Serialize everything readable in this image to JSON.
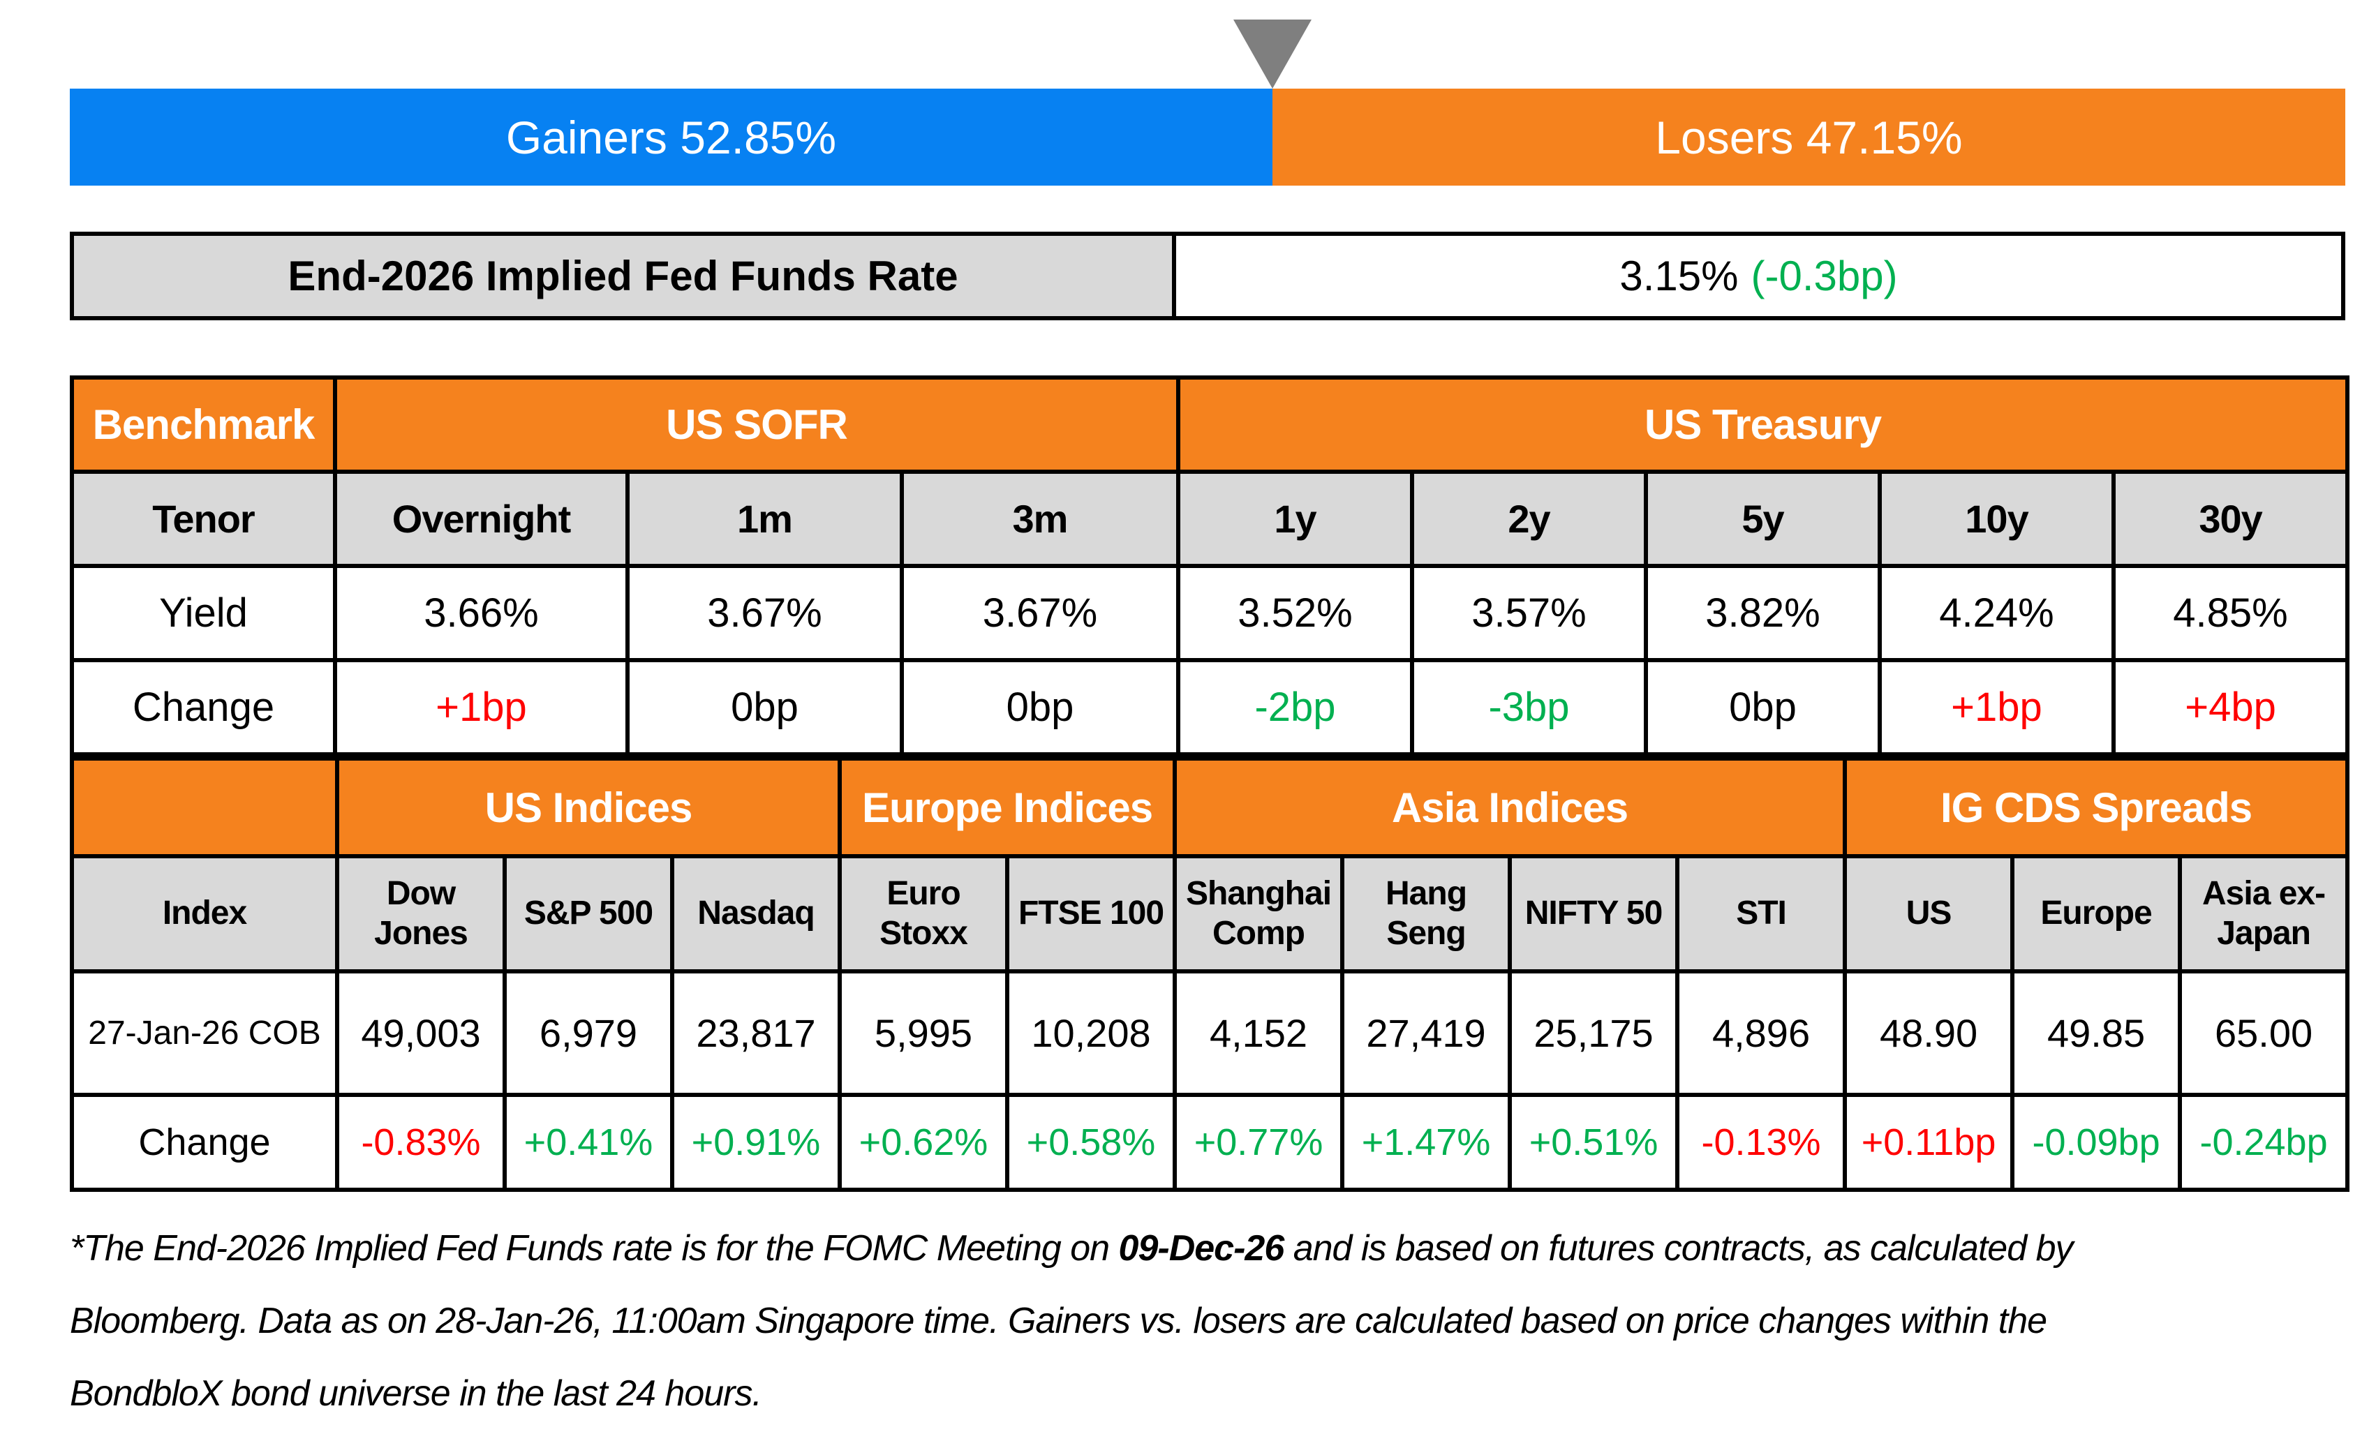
{
  "colors": {
    "gainers_blue": "#0781f2",
    "losers_orange": "#f5821e",
    "header_orange": "#f5821e",
    "cell_gray": "#d9d9d9",
    "positive_green": "#00b050",
    "negative_red": "#ff0000",
    "marker_gray": "#7f7f7f"
  },
  "bar": {
    "gainers_label": "Gainers 52.85%",
    "losers_label": "Losers 47.15%",
    "gainers_pct": 52.85,
    "losers_pct": 47.15
  },
  "fed_funds": {
    "label": "End-2026 Implied Fed Funds Rate",
    "rate": "3.15%",
    "change": "(-0.3bp)"
  },
  "benchmark_table": {
    "corner": "Benchmark",
    "sofr_header": "US SOFR",
    "treasury_header": "US Treasury",
    "tenor_label": "Tenor",
    "tenors": [
      "Overnight",
      "1m",
      "3m",
      "1y",
      "2y",
      "5y",
      "10y",
      "30y"
    ],
    "yield_label": "Yield",
    "yields": [
      "3.66%",
      "3.67%",
      "3.67%",
      "3.52%",
      "3.57%",
      "3.82%",
      "4.24%",
      "4.85%"
    ],
    "change_label": "Change",
    "changes": [
      "+1bp",
      "0bp",
      "0bp",
      "-2bp",
      "-3bp",
      "0bp",
      "+1bp",
      "+4bp"
    ]
  },
  "indices_table": {
    "sections": [
      "US Indices",
      "Europe Indices",
      "Asia Indices",
      "IG CDS Spreads"
    ],
    "index_label": "Index",
    "columns": [
      "Dow Jones",
      "S&P 500",
      "Nasdaq",
      "Euro Stoxx",
      "FTSE 100",
      "Shanghai Comp",
      "Hang Seng",
      "NIFTY 50",
      "STI",
      "US",
      "Europe",
      "Asia ex-Japan"
    ],
    "row_label": "27-Jan-26 COB",
    "values": [
      "49,003",
      "6,979",
      "23,817",
      "5,995",
      "10,208",
      "4,152",
      "27,419",
      "25,175",
      "4,896",
      "48.90",
      "49.85",
      "65.00"
    ],
    "change_label": "Change",
    "changes": [
      "-0.83%",
      "+0.41%",
      "+0.91%",
      "+0.62%",
      "+0.58%",
      "+0.77%",
      "+1.47%",
      "+0.51%",
      "-0.13%",
      "+0.11bp",
      "-0.09bp",
      "-0.24bp"
    ]
  },
  "footnote": {
    "line1_pre": "*The End-2026 Implied Fed Funds rate is for the FOMC Meeting on ",
    "line1_bold": "09-Dec-26",
    "line1_post": " and is based on futures contracts, as calculated by",
    "line2": "Bloomberg. Data as on 28-Jan-26, 11:00am Singapore time. Gainers vs. losers are calculated based on price changes within the",
    "line3": "BondbloX bond universe in the last 24 hours."
  },
  "chart_data": [
    {
      "type": "bar",
      "title": "Gainers vs Losers (BondbloX bond universe, last 24 hours)",
      "categories": [
        "Gainers",
        "Losers"
      ],
      "values": [
        52.85,
        47.15
      ],
      "unit": "%",
      "orientation": "horizontal-stacked",
      "colors": [
        "#0781f2",
        "#f5821e"
      ],
      "annotation": "gray down-triangle marker at the 52.85% split"
    },
    {
      "type": "table",
      "title": "Benchmark",
      "groups": [
        {
          "name": "US SOFR",
          "columns": [
            "Overnight",
            "1m",
            "3m"
          ]
        },
        {
          "name": "US Treasury",
          "columns": [
            "1y",
            "2y",
            "5y",
            "10y",
            "30y"
          ]
        }
      ],
      "columns": [
        "Tenor",
        "Overnight",
        "1m",
        "3m",
        "1y",
        "2y",
        "5y",
        "10y",
        "30y"
      ],
      "rows": [
        [
          "Yield",
          "3.66%",
          "3.67%",
          "3.67%",
          "3.52%",
          "3.57%",
          "3.82%",
          "4.24%",
          "4.85%"
        ],
        [
          "Change",
          "+1bp",
          "0bp",
          "0bp",
          "-2bp",
          "-3bp",
          "0bp",
          "+1bp",
          "+4bp"
        ]
      ]
    },
    {
      "type": "table",
      "title": "Indices and IG CDS Spreads",
      "groups": [
        {
          "name": "US Indices",
          "columns": [
            "Dow Jones",
            "S&P 500",
            "Nasdaq"
          ]
        },
        {
          "name": "Europe Indices",
          "columns": [
            "Euro Stoxx",
            "FTSE 100"
          ]
        },
        {
          "name": "Asia Indices",
          "columns": [
            "Shanghai Comp",
            "Hang Seng",
            "NIFTY 50",
            "STI"
          ]
        },
        {
          "name": "IG CDS Spreads",
          "columns": [
            "US",
            "Europe",
            "Asia ex-Japan"
          ]
        }
      ],
      "columns": [
        "Index",
        "Dow Jones",
        "S&P 500",
        "Nasdaq",
        "Euro Stoxx",
        "FTSE 100",
        "Shanghai Comp",
        "Hang Seng",
        "NIFTY 50",
        "STI",
        "US",
        "Europe",
        "Asia ex-Japan"
      ],
      "rows": [
        [
          "27-Jan-26 COB",
          "49,003",
          "6,979",
          "23,817",
          "5,995",
          "10,208",
          "4,152",
          "27,419",
          "25,175",
          "4,896",
          "48.90",
          "49.85",
          "65.00"
        ],
        [
          "Change",
          "-0.83%",
          "+0.41%",
          "+0.91%",
          "+0.62%",
          "+0.58%",
          "+0.77%",
          "+1.47%",
          "+0.51%",
          "-0.13%",
          "+0.11bp",
          "-0.09bp",
          "-0.24bp"
        ]
      ]
    }
  ]
}
